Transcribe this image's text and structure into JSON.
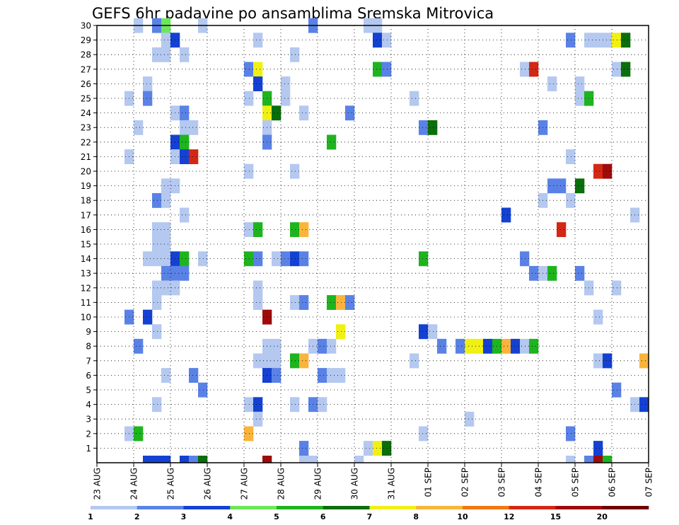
{
  "chart_data": {
    "type": "heatmap",
    "title": "GEFS 6hr padavine po ansamblima Sremska Mitrovica",
    "x_tick_labels": [
      "23 AUG",
      "24 AUG",
      "25 AUG",
      "26 AUG",
      "27 AUG",
      "28 AUG",
      "29 AUG",
      "30 AUG",
      "31 AUG",
      "01 SEP",
      "02 SEP",
      "03 SEP",
      "04 SEP",
      "05 SEP",
      "06 SEP",
      "07 SEP"
    ],
    "y_tick_labels": [
      "1",
      "2",
      "3",
      "4",
      "5",
      "6",
      "7",
      "8",
      "9",
      "10",
      "11",
      "12",
      "13",
      "14",
      "15",
      "16",
      "17",
      "18",
      "19",
      "20",
      "21",
      "22",
      "23",
      "24",
      "25",
      "26",
      "27",
      "28",
      "29",
      "30"
    ],
    "x_range": [
      0,
      60
    ],
    "y_range": [
      0,
      30
    ],
    "grid": true,
    "legend": {
      "placement": "bottom",
      "levels": [
        "1",
        "2",
        "3",
        "4",
        "5",
        "6",
        "7",
        "8",
        "10",
        "12",
        "15",
        "20"
      ],
      "colors": [
        "#b4c8f0",
        "#5a82e6",
        "#1441d2",
        "#6ee65a",
        "#1eb41e",
        "#0a6e0a",
        "#f0f014",
        "#fab43c",
        "#f07814",
        "#d22814",
        "#a00a0a",
        "#6e0000"
      ]
    },
    "cells_format": "[x_step, member_row, color_class]",
    "cells": [
      [
        4,
        30,
        0
      ],
      [
        6,
        30,
        1
      ],
      [
        7,
        30,
        3
      ],
      [
        11,
        30,
        0
      ],
      [
        23,
        30,
        1
      ],
      [
        29,
        30,
        0
      ],
      [
        30,
        30,
        0
      ],
      [
        7,
        29,
        0
      ],
      [
        8,
        29,
        2
      ],
      [
        17,
        29,
        0
      ],
      [
        30,
        29,
        2
      ],
      [
        31,
        29,
        0
      ],
      [
        51,
        29,
        1
      ],
      [
        53,
        29,
        0
      ],
      [
        54,
        29,
        0
      ],
      [
        55,
        29,
        0
      ],
      [
        56,
        29,
        6
      ],
      [
        57,
        29,
        5
      ],
      [
        6,
        28,
        0
      ],
      [
        7,
        28,
        0
      ],
      [
        9,
        28,
        0
      ],
      [
        21,
        28,
        0
      ],
      [
        16,
        27,
        1
      ],
      [
        17,
        27,
        6
      ],
      [
        30,
        27,
        4
      ],
      [
        31,
        27,
        1
      ],
      [
        46,
        27,
        0
      ],
      [
        47,
        27,
        9
      ],
      [
        56,
        27,
        0
      ],
      [
        57,
        27,
        5
      ],
      [
        5,
        26,
        0
      ],
      [
        17,
        26,
        2
      ],
      [
        20,
        26,
        0
      ],
      [
        49,
        26,
        0
      ],
      [
        52,
        26,
        0
      ],
      [
        3,
        25,
        0
      ],
      [
        5,
        25,
        1
      ],
      [
        16,
        25,
        0
      ],
      [
        18,
        25,
        4
      ],
      [
        20,
        25,
        0
      ],
      [
        34,
        25,
        0
      ],
      [
        52,
        25,
        0
      ],
      [
        53,
        25,
        4
      ],
      [
        8,
        24,
        0
      ],
      [
        9,
        24,
        1
      ],
      [
        18,
        24,
        6
      ],
      [
        19,
        24,
        5
      ],
      [
        22,
        24,
        0
      ],
      [
        27,
        24,
        1
      ],
      [
        4,
        23,
        0
      ],
      [
        9,
        23,
        0
      ],
      [
        10,
        23,
        0
      ],
      [
        18,
        23,
        0
      ],
      [
        35,
        23,
        1
      ],
      [
        36,
        23,
        5
      ],
      [
        48,
        23,
        1
      ],
      [
        8,
        22,
        2
      ],
      [
        9,
        22,
        4
      ],
      [
        18,
        22,
        1
      ],
      [
        25,
        22,
        4
      ],
      [
        3,
        21,
        0
      ],
      [
        8,
        21,
        0
      ],
      [
        9,
        21,
        2
      ],
      [
        10,
        21,
        9
      ],
      [
        51,
        21,
        0
      ],
      [
        16,
        20,
        0
      ],
      [
        21,
        20,
        0
      ],
      [
        54,
        20,
        9
      ],
      [
        55,
        20,
        10
      ],
      [
        7,
        19,
        0
      ],
      [
        8,
        19,
        0
      ],
      [
        49,
        19,
        1
      ],
      [
        50,
        19,
        1
      ],
      [
        52,
        19,
        5
      ],
      [
        6,
        18,
        1
      ],
      [
        7,
        18,
        0
      ],
      [
        48,
        18,
        0
      ],
      [
        51,
        18,
        0
      ],
      [
        9,
        17,
        0
      ],
      [
        44,
        17,
        2
      ],
      [
        58,
        17,
        0
      ],
      [
        6,
        16,
        0
      ],
      [
        7,
        16,
        0
      ],
      [
        16,
        16,
        0
      ],
      [
        17,
        16,
        4
      ],
      [
        21,
        16,
        4
      ],
      [
        22,
        16,
        7
      ],
      [
        50,
        16,
        9
      ],
      [
        6,
        15,
        0
      ],
      [
        7,
        15,
        0
      ],
      [
        5,
        14,
        0
      ],
      [
        6,
        14,
        0
      ],
      [
        7,
        14,
        0
      ],
      [
        8,
        14,
        2
      ],
      [
        9,
        14,
        4
      ],
      [
        11,
        14,
        0
      ],
      [
        16,
        14,
        4
      ],
      [
        17,
        14,
        1
      ],
      [
        19,
        14,
        0
      ],
      [
        20,
        14,
        1
      ],
      [
        21,
        14,
        2
      ],
      [
        22,
        14,
        1
      ],
      [
        35,
        14,
        4
      ],
      [
        46,
        14,
        1
      ],
      [
        7,
        13,
        1
      ],
      [
        8,
        13,
        1
      ],
      [
        9,
        13,
        1
      ],
      [
        47,
        13,
        1
      ],
      [
        48,
        13,
        0
      ],
      [
        49,
        13,
        4
      ],
      [
        52,
        13,
        1
      ],
      [
        6,
        12,
        0
      ],
      [
        7,
        12,
        0
      ],
      [
        8,
        12,
        0
      ],
      [
        17,
        12,
        0
      ],
      [
        53,
        12,
        0
      ],
      [
        56,
        12,
        0
      ],
      [
        6,
        11,
        0
      ],
      [
        17,
        11,
        0
      ],
      [
        21,
        11,
        0
      ],
      [
        22,
        11,
        1
      ],
      [
        25,
        11,
        4
      ],
      [
        26,
        11,
        7
      ],
      [
        27,
        11,
        1
      ],
      [
        3,
        10,
        1
      ],
      [
        5,
        10,
        2
      ],
      [
        18,
        10,
        10
      ],
      [
        54,
        10,
        0
      ],
      [
        6,
        9,
        0
      ],
      [
        26,
        9,
        6
      ],
      [
        35,
        9,
        2
      ],
      [
        36,
        9,
        0
      ],
      [
        4,
        8,
        1
      ],
      [
        18,
        8,
        0
      ],
      [
        19,
        8,
        0
      ],
      [
        23,
        8,
        0
      ],
      [
        24,
        8,
        1
      ],
      [
        25,
        8,
        0
      ],
      [
        37,
        8,
        1
      ],
      [
        39,
        8,
        1
      ],
      [
        40,
        8,
        6
      ],
      [
        41,
        8,
        6
      ],
      [
        42,
        8,
        2
      ],
      [
        43,
        8,
        4
      ],
      [
        44,
        8,
        7
      ],
      [
        45,
        8,
        2
      ],
      [
        46,
        8,
        0
      ],
      [
        47,
        8,
        4
      ],
      [
        17,
        7,
        0
      ],
      [
        18,
        7,
        0
      ],
      [
        19,
        7,
        0
      ],
      [
        21,
        7,
        4
      ],
      [
        22,
        7,
        7
      ],
      [
        34,
        7,
        0
      ],
      [
        54,
        7,
        0
      ],
      [
        55,
        7,
        2
      ],
      [
        59,
        7,
        7
      ],
      [
        7,
        6,
        0
      ],
      [
        10,
        6,
        1
      ],
      [
        18,
        6,
        2
      ],
      [
        19,
        6,
        1
      ],
      [
        24,
        6,
        1
      ],
      [
        25,
        6,
        0
      ],
      [
        26,
        6,
        0
      ],
      [
        11,
        5,
        1
      ],
      [
        56,
        5,
        1
      ],
      [
        6,
        4,
        0
      ],
      [
        16,
        4,
        0
      ],
      [
        17,
        4,
        2
      ],
      [
        21,
        4,
        0
      ],
      [
        23,
        4,
        1
      ],
      [
        24,
        4,
        0
      ],
      [
        58,
        4,
        0
      ],
      [
        59,
        4,
        2
      ],
      [
        17,
        3,
        0
      ],
      [
        40,
        3,
        0
      ],
      [
        3,
        2,
        0
      ],
      [
        4,
        2,
        4
      ],
      [
        16,
        2,
        7
      ],
      [
        35,
        2,
        0
      ],
      [
        51,
        2,
        1
      ],
      [
        22,
        1,
        1
      ],
      [
        29,
        1,
        0
      ],
      [
        30,
        1,
        6
      ],
      [
        31,
        1,
        5
      ],
      [
        54,
        1,
        2
      ],
      [
        5,
        0,
        2
      ],
      [
        6,
        0,
        2
      ],
      [
        7,
        0,
        2
      ],
      [
        9,
        0,
        2
      ],
      [
        10,
        0,
        1
      ],
      [
        11,
        0,
        5
      ],
      [
        18,
        0,
        10
      ],
      [
        22,
        0,
        0
      ],
      [
        23,
        0,
        0
      ],
      [
        28,
        0,
        0
      ],
      [
        51,
        0,
        0
      ],
      [
        53,
        0,
        1
      ],
      [
        54,
        0,
        10
      ],
      [
        55,
        0,
        4
      ]
    ]
  }
}
